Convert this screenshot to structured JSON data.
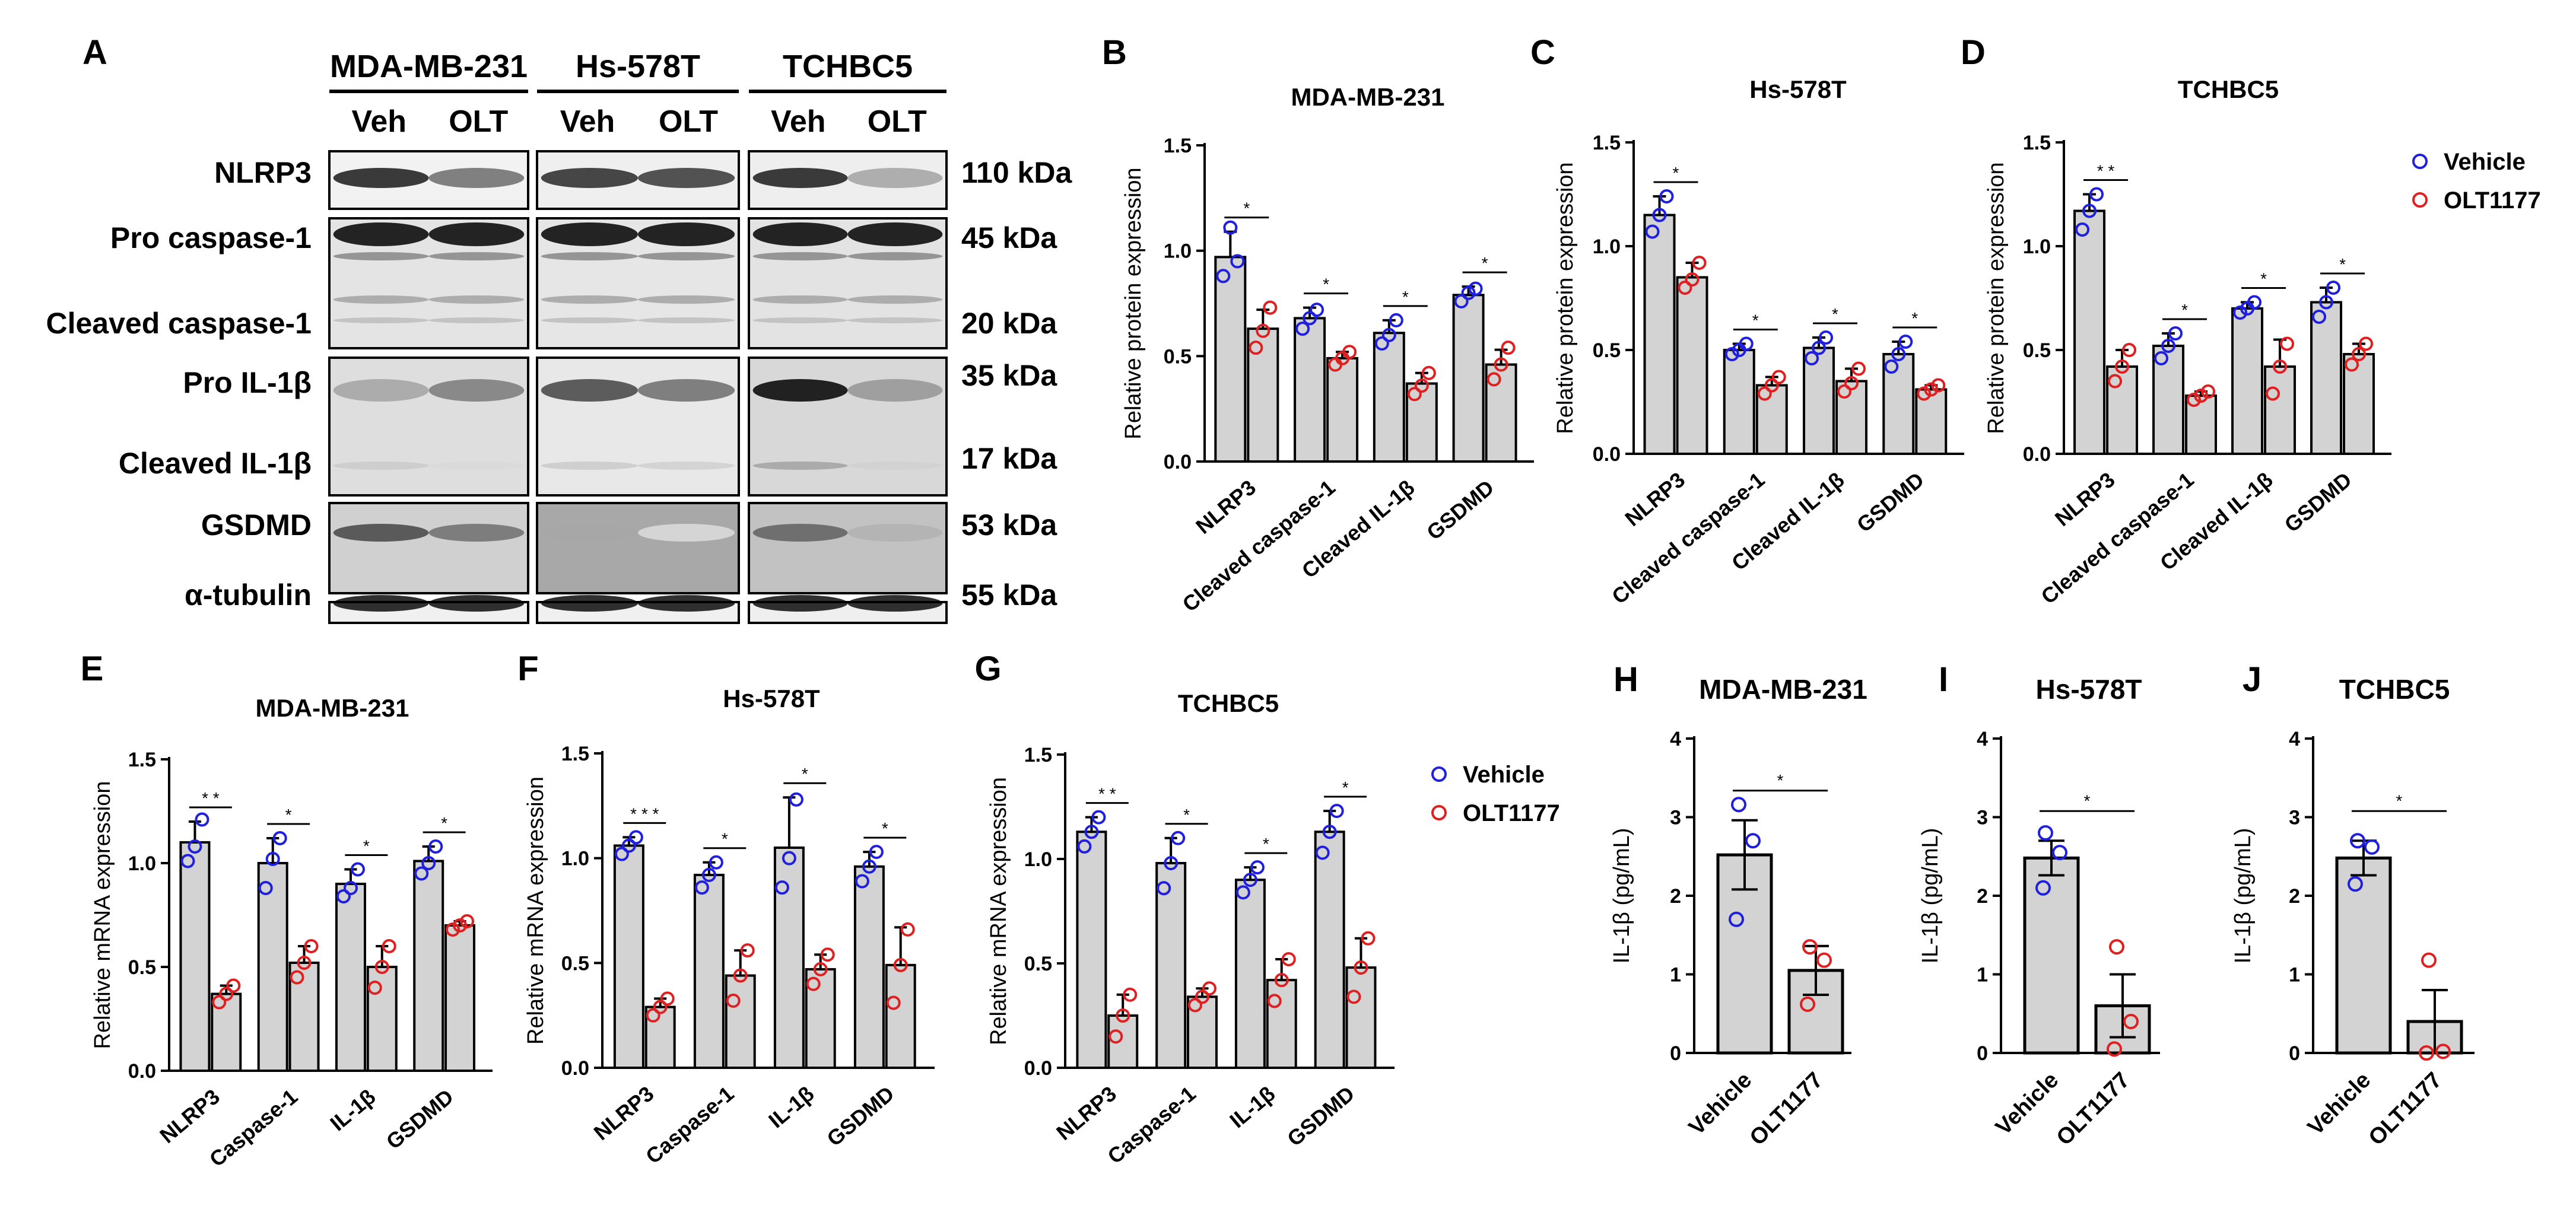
{
  "panel_letters": [
    "A",
    "B",
    "C",
    "D",
    "E",
    "F",
    "G",
    "H",
    "I",
    "J"
  ],
  "western_blot": {
    "cell_lines": [
      "MDA-MB-231",
      "Hs-578T",
      "TCHBC5"
    ],
    "treatments": [
      "Veh",
      "OLT"
    ],
    "rows": [
      {
        "label": "NLRP3",
        "kda": "110 kDa"
      },
      {
        "label": "Pro caspase-1",
        "kda": "45 kDa"
      },
      {
        "label": "Cleaved caspase-1",
        "kda": "20 kDa"
      },
      {
        "label": "Pro IL-1β",
        "kda": "35 kDa"
      },
      {
        "label": "Cleaved IL-1β",
        "kda": "17 kDa"
      },
      {
        "label": "GSDMD",
        "kda": "53 kDa"
      },
      {
        "label": "α-tubulin",
        "kda": "55 kDa"
      }
    ]
  },
  "legend": {
    "vehicle": "Vehicle",
    "olt": "OLT1177",
    "vehicle_color": "#1f1fe0",
    "olt_color": "#e02020"
  },
  "chart_data": [
    {
      "panel": "B",
      "type": "bar",
      "title": "MDA-MB-231",
      "ylabel": "Relative protein expression",
      "ylim": [
        0,
        1.5
      ],
      "yticks": [
        "0.0",
        "0.5",
        "1.0",
        "1.5"
      ],
      "categories": [
        "NLRP3",
        "Cleaved caspase-1",
        "Cleaved IL-1β",
        "GSDMD"
      ],
      "series": [
        {
          "name": "Vehicle",
          "values": [
            0.97,
            0.68,
            0.61,
            0.79
          ],
          "errors": [
            0.12,
            0.05,
            0.06,
            0.04
          ],
          "points": [
            [
              0.88,
              1.11,
              0.95
            ],
            [
              0.63,
              0.68,
              0.72
            ],
            [
              0.56,
              0.6,
              0.67
            ],
            [
              0.76,
              0.8,
              0.82
            ]
          ]
        },
        {
          "name": "OLT1177",
          "values": [
            0.63,
            0.49,
            0.37,
            0.46
          ],
          "errors": [
            0.09,
            0.03,
            0.05,
            0.07
          ],
          "points": [
            [
              0.54,
              0.62,
              0.73
            ],
            [
              0.46,
              0.49,
              0.52
            ],
            [
              0.32,
              0.36,
              0.42
            ],
            [
              0.39,
              0.46,
              0.54
            ]
          ]
        }
      ],
      "significance": [
        "*",
        "*",
        "*",
        "*"
      ]
    },
    {
      "panel": "C",
      "type": "bar",
      "title": "Hs-578T",
      "ylabel": "Relative protein expression",
      "ylim": [
        0,
        1.5
      ],
      "yticks": [
        "0.0",
        "0.5",
        "1.0",
        "1.5"
      ],
      "categories": [
        "NLRP3",
        "Cleaved caspase-1",
        "Cleaved IL-1β",
        "GSDMD"
      ],
      "series": [
        {
          "name": "Vehicle",
          "values": [
            1.15,
            0.5,
            0.51,
            0.48
          ],
          "errors": [
            0.09,
            0.03,
            0.05,
            0.06
          ],
          "points": [
            [
              1.07,
              1.15,
              1.24
            ],
            [
              0.48,
              0.5,
              0.53
            ],
            [
              0.46,
              0.51,
              0.56
            ],
            [
              0.42,
              0.48,
              0.54
            ]
          ]
        },
        {
          "name": "OLT1177",
          "values": [
            0.85,
            0.33,
            0.35,
            0.31
          ],
          "errors": [
            0.07,
            0.04,
            0.06,
            0.02
          ],
          "points": [
            [
              0.8,
              0.84,
              0.92
            ],
            [
              0.29,
              0.33,
              0.37
            ],
            [
              0.3,
              0.34,
              0.41
            ],
            [
              0.29,
              0.31,
              0.33
            ]
          ]
        }
      ],
      "significance": [
        "*",
        "*",
        "*",
        "*"
      ]
    },
    {
      "panel": "D",
      "type": "bar",
      "title": "TCHBC5",
      "ylabel": "Relative protein expression",
      "ylim": [
        0,
        1.5
      ],
      "yticks": [
        "0.0",
        "0.5",
        "1.0",
        "1.5"
      ],
      "categories": [
        "NLRP3",
        "Cleaved caspase-1",
        "Cleaved IL-1β",
        "GSDMD"
      ],
      "series": [
        {
          "name": "Vehicle",
          "values": [
            1.17,
            0.52,
            0.7,
            0.73
          ],
          "errors": [
            0.08,
            0.06,
            0.03,
            0.07
          ],
          "points": [
            [
              1.08,
              1.17,
              1.25
            ],
            [
              0.46,
              0.52,
              0.58
            ],
            [
              0.68,
              0.7,
              0.73
            ],
            [
              0.66,
              0.73,
              0.8
            ]
          ]
        },
        {
          "name": "OLT1177",
          "values": [
            0.42,
            0.28,
            0.42,
            0.48
          ],
          "errors": [
            0.08,
            0.02,
            0.13,
            0.05
          ],
          "points": [
            [
              0.35,
              0.42,
              0.5
            ],
            [
              0.26,
              0.28,
              0.3
            ],
            [
              0.29,
              0.42,
              0.53
            ],
            [
              0.43,
              0.48,
              0.53
            ]
          ]
        }
      ],
      "significance": [
        "* *",
        "*",
        "*",
        "*"
      ]
    },
    {
      "panel": "E",
      "type": "bar",
      "title": "MDA-MB-231",
      "ylabel": "Relative mRNA expression",
      "ylim": [
        0,
        1.5
      ],
      "yticks": [
        "0.0",
        "0.5",
        "1.0",
        "1.5"
      ],
      "categories": [
        "NLRP3",
        "Caspase-1",
        "IL-1β",
        "GSDMD"
      ],
      "series": [
        {
          "name": "Vehicle",
          "values": [
            1.1,
            1.0,
            0.9,
            1.01
          ],
          "errors": [
            0.1,
            0.12,
            0.07,
            0.07
          ],
          "points": [
            [
              1.01,
              1.08,
              1.21
            ],
            [
              0.88,
              1.02,
              1.12
            ],
            [
              0.84,
              0.88,
              0.97
            ],
            [
              0.95,
              1.0,
              1.08
            ]
          ]
        },
        {
          "name": "OLT1177",
          "values": [
            0.37,
            0.52,
            0.5,
            0.7
          ],
          "errors": [
            0.04,
            0.08,
            0.1,
            0.02
          ],
          "points": [
            [
              0.33,
              0.37,
              0.41
            ],
            [
              0.45,
              0.52,
              0.6
            ],
            [
              0.4,
              0.5,
              0.6
            ],
            [
              0.68,
              0.7,
              0.72
            ]
          ]
        }
      ],
      "significance": [
        "* *",
        "*",
        "*",
        "*"
      ]
    },
    {
      "panel": "F",
      "type": "bar",
      "title": "Hs-578T",
      "ylabel": "Relative mRNA expression",
      "ylim": [
        0,
        1.5
      ],
      "yticks": [
        "0.0",
        "0.5",
        "1.0",
        "1.5"
      ],
      "categories": [
        "NLRP3",
        "Caspase-1",
        "IL-1β",
        "GSDMD"
      ],
      "series": [
        {
          "name": "Vehicle",
          "values": [
            1.06,
            0.92,
            1.05,
            0.96
          ],
          "errors": [
            0.04,
            0.06,
            0.24,
            0.07
          ],
          "points": [
            [
              1.02,
              1.06,
              1.1
            ],
            [
              0.86,
              0.92,
              0.98
            ],
            [
              0.86,
              1.0,
              1.28
            ],
            [
              0.89,
              0.96,
              1.03
            ]
          ]
        },
        {
          "name": "OLT1177",
          "values": [
            0.29,
            0.44,
            0.47,
            0.49
          ],
          "errors": [
            0.04,
            0.12,
            0.07,
            0.18
          ],
          "points": [
            [
              0.25,
              0.29,
              0.33
            ],
            [
              0.32,
              0.44,
              0.56
            ],
            [
              0.4,
              0.47,
              0.54
            ],
            [
              0.31,
              0.49,
              0.66
            ]
          ]
        }
      ],
      "significance": [
        "* * *",
        "*",
        "*",
        "*"
      ]
    },
    {
      "panel": "G",
      "type": "bar",
      "title": "TCHBC5",
      "ylabel": "Relative mRNA expression",
      "ylim": [
        0,
        1.5
      ],
      "yticks": [
        "0.0",
        "0.5",
        "1.0",
        "1.5"
      ],
      "categories": [
        "NLRP3",
        "Caspase-1",
        "IL-1β",
        "GSDMD"
      ],
      "series": [
        {
          "name": "Vehicle",
          "values": [
            1.13,
            0.98,
            0.9,
            1.13
          ],
          "errors": [
            0.07,
            0.12,
            0.06,
            0.1
          ],
          "points": [
            [
              1.06,
              1.13,
              1.2
            ],
            [
              0.86,
              0.98,
              1.1
            ],
            [
              0.84,
              0.9,
              0.96
            ],
            [
              1.03,
              1.13,
              1.23
            ]
          ]
        },
        {
          "name": "OLT1177",
          "values": [
            0.25,
            0.34,
            0.42,
            0.48
          ],
          "errors": [
            0.1,
            0.04,
            0.1,
            0.14
          ],
          "points": [
            [
              0.15,
              0.25,
              0.35
            ],
            [
              0.3,
              0.34,
              0.38
            ],
            [
              0.32,
              0.42,
              0.52
            ],
            [
              0.34,
              0.48,
              0.62
            ]
          ]
        }
      ],
      "significance": [
        "* *",
        "*",
        "*",
        "*"
      ]
    },
    {
      "panel": "H",
      "type": "bar",
      "title": "MDA-MB-231",
      "ylabel": "IL-1β (pg/mL)",
      "ylim": [
        0,
        4
      ],
      "yticks": [
        "0",
        "1",
        "2",
        "3",
        "4"
      ],
      "categories": [
        "Vehicle",
        "OLT1177"
      ],
      "values": [
        2.52,
        1.05
      ],
      "errors": [
        0.44,
        0.31
      ],
      "points": [
        [
          1.7,
          2.7,
          3.16
        ],
        [
          0.62,
          1.18,
          1.35
        ]
      ],
      "significance": "*"
    },
    {
      "panel": "I",
      "type": "bar",
      "title": "Hs-578T",
      "ylabel": "IL-1β (pg/mL)",
      "ylim": [
        0,
        4
      ],
      "yticks": [
        "0",
        "1",
        "2",
        "3",
        "4"
      ],
      "categories": [
        "Vehicle",
        "OLT1177"
      ],
      "values": [
        2.48,
        0.6
      ],
      "errors": [
        0.22,
        0.4
      ],
      "points": [
        [
          2.1,
          2.55,
          2.8
        ],
        [
          0.05,
          0.4,
          1.35
        ]
      ],
      "significance": "*"
    },
    {
      "panel": "J",
      "type": "bar",
      "title": "TCHBC5",
      "ylabel": "IL-1β (pg/mL)",
      "ylim": [
        0,
        4
      ],
      "yticks": [
        "0",
        "1",
        "2",
        "3",
        "4"
      ],
      "categories": [
        "Vehicle",
        "OLT1177"
      ],
      "values": [
        2.48,
        0.4
      ],
      "errors": [
        0.22,
        0.4
      ],
      "points": [
        [
          2.15,
          2.62,
          2.7
        ],
        [
          0.0,
          0.02,
          1.18
        ]
      ],
      "significance": "*"
    }
  ]
}
